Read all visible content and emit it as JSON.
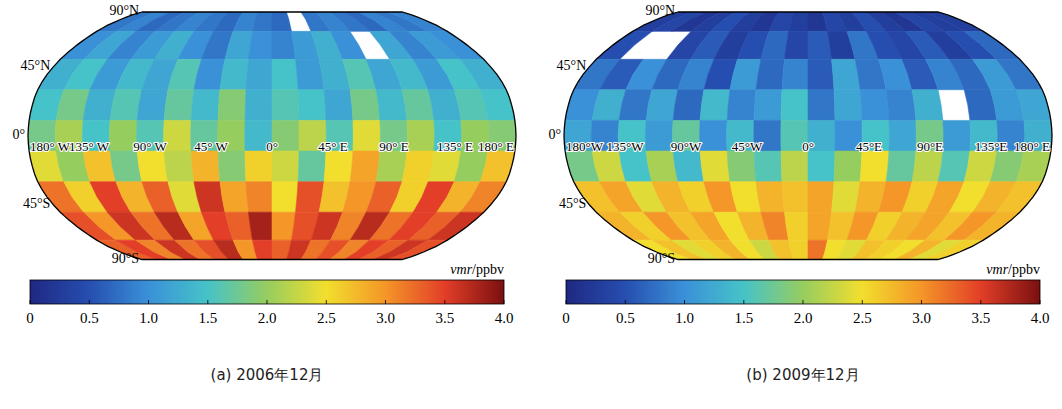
{
  "chart_data": [
    {
      "type": "heatmap",
      "title": "(a) 2006年12月",
      "xlim": [
        -180,
        180
      ],
      "ylim": [
        -90,
        90
      ],
      "xticks": [
        {
          "value": -180,
          "label": "180° W"
        },
        {
          "value": -135,
          "label": "135° W"
        },
        {
          "value": -90,
          "label": "90° W"
        },
        {
          "value": -45,
          "label": "45° W"
        },
        {
          "value": 0,
          "label": "0°"
        },
        {
          "value": 45,
          "label": "45° E"
        },
        {
          "value": 90,
          "label": "90° E"
        },
        {
          "value": 135,
          "label": "135° E"
        },
        {
          "value": 180,
          "label": "180° E"
        }
      ],
      "yticks": [
        {
          "value": 90,
          "label": "90°N"
        },
        {
          "value": 45,
          "label": "45°N"
        },
        {
          "value": 0,
          "label": "0°"
        },
        {
          "value": -45,
          "label": "45°S"
        },
        {
          "value": -90,
          "label": "90°S"
        }
      ],
      "x": [
        -170,
        -150,
        -130,
        -110,
        -90,
        -70,
        -50,
        -30,
        -10,
        10,
        30,
        50,
        70,
        90,
        110,
        130,
        150,
        170
      ],
      "y": [
        80,
        60,
        40,
        20,
        0,
        -20,
        -40,
        -60,
        -80
      ],
      "cells": [
        [
          0.8,
          0.9,
          0.7,
          0.8,
          0.9,
          0.8,
          0.7,
          0.9,
          0.8,
          0.7,
          null,
          0.8,
          0.9,
          0.8,
          0.7,
          0.9,
          0.8,
          0.9
        ],
        [
          1.0,
          1.2,
          0.9,
          1.1,
          1.3,
          1.0,
          0.8,
          1.2,
          1.0,
          0.9,
          1.1,
          1.3,
          1.0,
          null,
          1.2,
          0.9,
          1.1,
          1.0
        ],
        [
          1.3,
          1.5,
          1.1,
          1.4,
          1.2,
          1.6,
          1.0,
          1.4,
          1.2,
          1.5,
          1.1,
          1.3,
          1.6,
          1.2,
          1.4,
          1.1,
          1.5,
          1.3
        ],
        [
          1.5,
          1.8,
          1.3,
          1.6,
          1.2,
          1.7,
          1.4,
          1.9,
          1.3,
          1.6,
          1.5,
          1.2,
          1.8,
          1.4,
          1.7,
          1.3,
          1.6,
          1.5
        ],
        [
          1.8,
          2.1,
          1.5,
          2.0,
          1.6,
          2.3,
          1.7,
          2.0,
          1.4,
          1.9,
          2.2,
          1.6,
          2.4,
          1.8,
          2.1,
          1.5,
          2.0,
          1.9
        ],
        [
          2.4,
          2.0,
          2.7,
          1.8,
          2.5,
          2.2,
          2.8,
          1.9,
          2.6,
          2.3,
          1.7,
          2.5,
          2.9,
          2.1,
          2.6,
          2.4,
          2.0,
          2.7
        ],
        [
          3.2,
          2.6,
          3.5,
          2.8,
          3.3,
          2.4,
          3.6,
          2.9,
          3.1,
          2.5,
          3.4,
          2.7,
          3.0,
          3.3,
          2.6,
          3.5,
          2.8,
          3.1
        ],
        [
          3.4,
          3.0,
          3.6,
          3.2,
          3.7,
          2.9,
          3.5,
          3.3,
          3.8,
          3.0,
          3.4,
          3.6,
          3.1,
          3.7,
          3.2,
          3.5,
          3.3,
          3.6
        ],
        [
          3.3,
          3.5,
          3.1,
          3.6,
          3.2,
          3.4,
          3.7,
          3.0,
          3.5,
          3.3,
          3.6,
          3.2,
          3.4,
          3.1,
          3.5,
          3.3,
          3.6,
          3.4
        ]
      ],
      "colorbar": {
        "label": "vmr/ppbv",
        "range": [
          0,
          4
        ],
        "ticks": [
          0,
          0.5,
          {
            "value": 1,
            "label": "1.0"
          },
          1.5,
          {
            "value": 2,
            "label": "2.0"
          },
          2.5,
          {
            "value": 3,
            "label": "3.0"
          },
          3.5,
          {
            "value": 4,
            "label": "4.0"
          }
        ]
      }
    },
    {
      "type": "heatmap",
      "title": "(b) 2009年12月",
      "xlim": [
        -180,
        180
      ],
      "ylim": [
        -90,
        90
      ],
      "xticks": [
        {
          "value": -180,
          "label": "180°W"
        },
        {
          "value": -135,
          "label": "135°W"
        },
        {
          "value": -90,
          "label": "90°W"
        },
        {
          "value": -45,
          "label": "45°W"
        },
        {
          "value": 0,
          "label": "0°"
        },
        {
          "value": 45,
          "label": "45°E"
        },
        {
          "value": 90,
          "label": "90°E"
        },
        {
          "value": 135,
          "label": "135°E"
        },
        {
          "value": 180,
          "label": "180° E"
        }
      ],
      "yticks": [
        {
          "value": 90,
          "label": "90°N"
        },
        {
          "value": 45,
          "label": "45°N"
        },
        {
          "value": 0,
          "label": "0°"
        },
        {
          "value": -45,
          "label": "45°S"
        },
        {
          "value": -90,
          "label": "90°S"
        }
      ],
      "x": [
        -170,
        -150,
        -130,
        -110,
        -90,
        -70,
        -50,
        -30,
        -10,
        10,
        30,
        50,
        70,
        90,
        110,
        130,
        150,
        170
      ],
      "y": [
        80,
        60,
        40,
        20,
        0,
        -20,
        -40,
        -60,
        -80
      ],
      "cells": [
        [
          0.3,
          0.4,
          0.2,
          0.3,
          0.5,
          0.3,
          0.2,
          0.4,
          0.3,
          0.2,
          0.4,
          0.3,
          0.5,
          0.3,
          0.2,
          0.4,
          0.3,
          0.3
        ],
        [
          0.5,
          null,
          null,
          0.4,
          0.6,
          0.3,
          0.5,
          0.7,
          0.4,
          0.6,
          0.3,
          0.8,
          0.5,
          0.4,
          0.6,
          0.3,
          0.5,
          0.7
        ],
        [
          0.8,
          0.6,
          1.0,
          0.7,
          0.9,
          0.5,
          1.1,
          0.7,
          0.9,
          0.6,
          1.2,
          0.8,
          1.0,
          0.6,
          0.9,
          0.7,
          1.1,
          0.8
        ],
        [
          1.0,
          1.3,
          0.8,
          1.2,
          0.7,
          1.4,
          0.9,
          1.1,
          1.5,
          0.8,
          1.2,
          1.0,
          0.9,
          1.3,
          null,
          0.7,
          1.1,
          1.2
        ],
        [
          1.2,
          0.9,
          1.5,
          1.1,
          1.7,
          1.0,
          1.4,
          0.8,
          1.6,
          1.3,
          1.0,
          1.5,
          1.2,
          1.8,
          1.1,
          1.4,
          0.9,
          1.3
        ],
        [
          1.8,
          2.3,
          1.5,
          2.1,
          1.4,
          2.4,
          1.9,
          1.6,
          2.2,
          1.5,
          2.0,
          2.5,
          1.7,
          2.2,
          1.6,
          2.3,
          1.9,
          2.1
        ],
        [
          2.7,
          2.9,
          2.4,
          2.8,
          2.6,
          3.0,
          2.5,
          2.8,
          2.7,
          2.9,
          2.4,
          2.8,
          3.0,
          2.6,
          2.9,
          2.5,
          2.8,
          2.7
        ],
        [
          2.8,
          2.6,
          3.0,
          2.7,
          2.9,
          2.5,
          2.8,
          3.1,
          2.6,
          2.9,
          2.7,
          3.0,
          2.6,
          2.8,
          2.9,
          2.7,
          3.0,
          2.8
        ],
        [
          2.5,
          2.7,
          2.4,
          2.6,
          2.8,
          2.5,
          2.3,
          2.7,
          2.6,
          3.2,
          2.5,
          2.4,
          2.7,
          2.6,
          2.5,
          2.8,
          2.4,
          2.6
        ]
      ],
      "colorbar": {
        "label": "vmr/ppbv",
        "range": [
          0,
          4
        ],
        "ticks": [
          0,
          0.5,
          {
            "value": 1,
            "label": "1.0"
          },
          1.5,
          {
            "value": 2,
            "label": "2.0"
          },
          2.5,
          {
            "value": 3,
            "label": "3.0"
          },
          3.5,
          {
            "value": 4,
            "label": "4.0"
          }
        ]
      }
    }
  ]
}
